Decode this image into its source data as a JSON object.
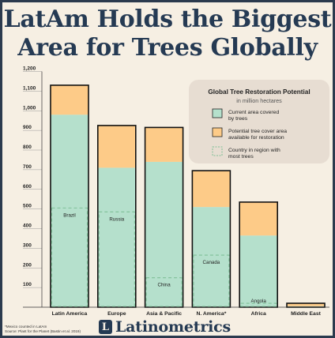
{
  "header": {
    "title_line1": "LatAm Holds the Biggest",
    "title_line2": "Area for Trees Globally"
  },
  "footer": {
    "footnote_line1": "*Mexico counted in LatAm",
    "footnote_line2": "Source: Plant for the Planet (Bastin et al. 2019)",
    "brand_initial": "L",
    "brand_name": "Latinometrics"
  },
  "chart_data": {
    "type": "bar",
    "stacked": true,
    "title": "Global Tree Restoration Potential",
    "subtitle": "in million hectares",
    "categories": [
      "Latin America",
      "Europe",
      "Asia & Pacific",
      "N. America*",
      "Africa",
      "Middle East"
    ],
    "series": [
      {
        "name": "Current area covered by trees",
        "color": "#b5e0cc",
        "values": [
          980,
          710,
          740,
          510,
          365,
          5
        ]
      },
      {
        "name": "Potential tree cover area available for restoration",
        "color": "#fdcb88",
        "values": [
          150,
          215,
          175,
          185,
          170,
          15
        ]
      }
    ],
    "reference": {
      "name": "Country in region with most trees",
      "color": "#7fbf97",
      "countries": [
        "Brazil",
        "Russia",
        "China",
        "Canada",
        "Angola",
        ""
      ],
      "values": [
        505,
        485,
        150,
        265,
        20,
        null
      ]
    },
    "yticks": [
      100,
      200,
      300,
      400,
      500,
      600,
      700,
      800,
      900,
      "1,000",
      "1,100",
      "1,200"
    ],
    "ylim": [
      0,
      1200
    ],
    "legend_position": "top-right",
    "grid": false
  }
}
